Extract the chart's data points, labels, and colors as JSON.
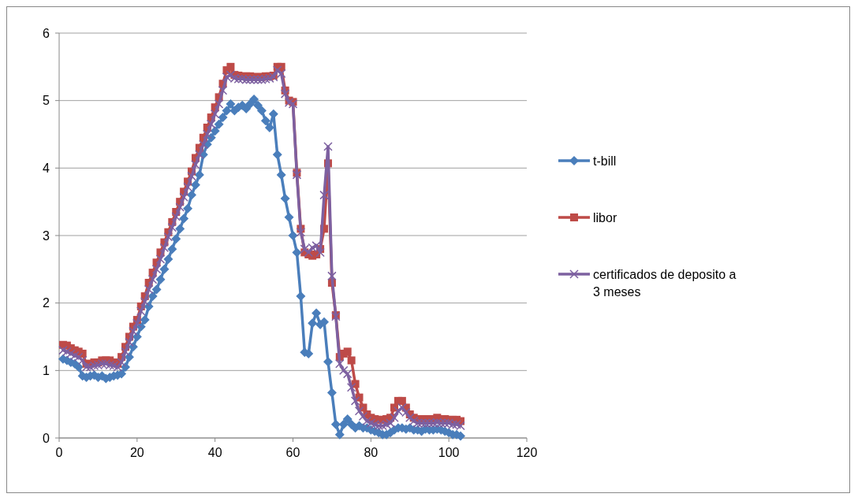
{
  "chart_data": {
    "type": "line",
    "x": [
      1,
      2,
      3,
      4,
      5,
      6,
      7,
      8,
      9,
      10,
      11,
      12,
      13,
      14,
      15,
      16,
      17,
      18,
      19,
      20,
      21,
      22,
      23,
      24,
      25,
      26,
      27,
      28,
      29,
      30,
      31,
      32,
      33,
      34,
      35,
      36,
      37,
      38,
      39,
      40,
      41,
      42,
      43,
      44,
      45,
      46,
      47,
      48,
      49,
      50,
      51,
      52,
      53,
      54,
      55,
      56,
      57,
      58,
      59,
      60,
      61,
      62,
      63,
      64,
      65,
      66,
      67,
      68,
      69,
      70,
      71,
      72,
      73,
      74,
      75,
      76,
      77,
      78,
      79,
      80,
      81,
      82,
      83,
      84,
      85,
      86,
      87,
      88,
      89,
      90,
      91,
      92,
      93,
      94,
      95,
      96,
      97,
      98,
      99,
      100,
      101,
      102,
      103
    ],
    "series": [
      {
        "name": "t-bill",
        "color": "#4a7ebb",
        "marker": "diamond",
        "values": [
          1.17,
          1.15,
          1.12,
          1.1,
          1.05,
          0.92,
          0.9,
          0.92,
          0.93,
          0.9,
          0.92,
          0.88,
          0.9,
          0.92,
          0.93,
          0.95,
          1.05,
          1.2,
          1.35,
          1.5,
          1.65,
          1.75,
          1.95,
          2.1,
          2.2,
          2.35,
          2.5,
          2.65,
          2.8,
          2.95,
          3.1,
          3.25,
          3.4,
          3.6,
          3.75,
          3.9,
          4.2,
          4.35,
          4.45,
          4.55,
          4.65,
          4.75,
          4.85,
          4.95,
          4.85,
          4.9,
          4.93,
          4.88,
          4.95,
          5.02,
          4.93,
          4.85,
          4.7,
          4.6,
          4.8,
          4.2,
          3.9,
          3.55,
          3.27,
          3.0,
          2.75,
          2.1,
          1.27,
          1.25,
          1.7,
          1.85,
          1.68,
          1.72,
          1.13,
          0.67,
          0.2,
          0.05,
          0.2,
          0.28,
          0.2,
          0.15,
          0.18,
          0.15,
          0.15,
          0.12,
          0.1,
          0.08,
          0.05,
          0.05,
          0.08,
          0.12,
          0.15,
          0.15,
          0.13,
          0.15,
          0.12,
          0.12,
          0.1,
          0.13,
          0.12,
          0.12,
          0.13,
          0.12,
          0.1,
          0.08,
          0.05,
          0.05,
          0.03
        ]
      },
      {
        "name": "libor",
        "color": "#be4b48",
        "marker": "square",
        "values": [
          1.38,
          1.37,
          1.33,
          1.3,
          1.28,
          1.25,
          1.1,
          1.1,
          1.12,
          1.12,
          1.15,
          1.15,
          1.15,
          1.12,
          1.1,
          1.2,
          1.35,
          1.5,
          1.65,
          1.75,
          1.95,
          2.1,
          2.3,
          2.45,
          2.6,
          2.75,
          2.9,
          3.05,
          3.2,
          3.35,
          3.5,
          3.65,
          3.8,
          3.95,
          4.15,
          4.3,
          4.45,
          4.6,
          4.75,
          4.9,
          5.05,
          5.25,
          5.45,
          5.5,
          5.38,
          5.37,
          5.36,
          5.36,
          5.36,
          5.35,
          5.35,
          5.35,
          5.36,
          5.36,
          5.37,
          5.5,
          5.5,
          5.15,
          5.0,
          4.98,
          3.93,
          3.1,
          2.75,
          2.72,
          2.7,
          2.72,
          2.8,
          3.1,
          4.07,
          2.3,
          1.82,
          1.2,
          1.25,
          1.28,
          1.15,
          0.8,
          0.6,
          0.45,
          0.35,
          0.3,
          0.28,
          0.27,
          0.27,
          0.28,
          0.3,
          0.45,
          0.55,
          0.55,
          0.45,
          0.35,
          0.3,
          0.28,
          0.28,
          0.28,
          0.28,
          0.28,
          0.3,
          0.28,
          0.28,
          0.27,
          0.27,
          0.27,
          0.25
        ]
      },
      {
        "name": "certificados de deposito a 3 meses",
        "color": "#7d60a0",
        "marker": "cross",
        "values": [
          1.3,
          1.28,
          1.25,
          1.22,
          1.2,
          1.15,
          1.05,
          1.05,
          1.07,
          1.08,
          1.1,
          1.1,
          1.08,
          1.07,
          1.05,
          1.12,
          1.28,
          1.42,
          1.58,
          1.7,
          1.88,
          2.02,
          2.2,
          2.35,
          2.5,
          2.65,
          2.82,
          2.98,
          3.12,
          3.28,
          3.42,
          3.57,
          3.72,
          3.88,
          4.05,
          4.2,
          4.35,
          4.5,
          4.65,
          4.8,
          4.95,
          5.15,
          5.35,
          5.38,
          5.33,
          5.32,
          5.32,
          5.31,
          5.31,
          5.31,
          5.31,
          5.31,
          5.32,
          5.33,
          5.35,
          5.45,
          5.4,
          5.1,
          4.97,
          4.95,
          3.9,
          3.05,
          2.8,
          2.75,
          2.82,
          2.85,
          2.75,
          3.6,
          4.32,
          2.4,
          1.8,
          1.1,
          1.0,
          0.95,
          0.75,
          0.55,
          0.4,
          0.32,
          0.25,
          0.22,
          0.2,
          0.18,
          0.18,
          0.2,
          0.22,
          0.3,
          0.4,
          0.45,
          0.38,
          0.3,
          0.25,
          0.22,
          0.22,
          0.22,
          0.22,
          0.22,
          0.23,
          0.22,
          0.22,
          0.22,
          0.2,
          0.2,
          0.18
        ]
      }
    ],
    "xlim": [
      0,
      120
    ],
    "xticks": [
      0,
      20,
      40,
      60,
      80,
      100,
      120
    ],
    "ylim": [
      0,
      6
    ],
    "yticks": [
      0,
      1,
      2,
      3,
      4,
      5,
      6
    ],
    "grid": "y",
    "legend": "right",
    "line_style": "solid"
  }
}
